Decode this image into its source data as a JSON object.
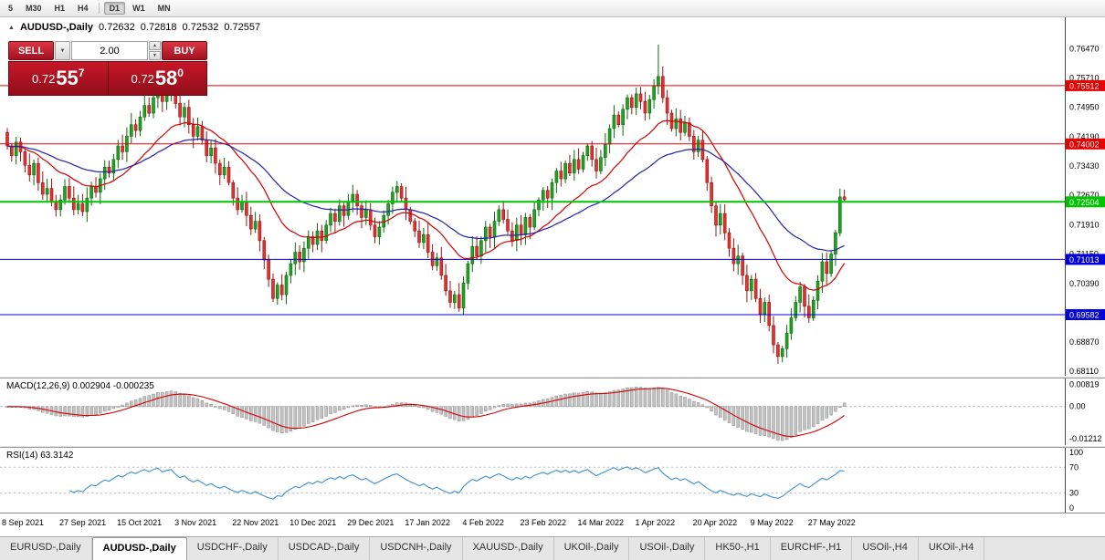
{
  "toolbar": {
    "timeframes": [
      {
        "label": "5",
        "active": false
      },
      {
        "label": "M30",
        "active": false
      },
      {
        "label": "H1",
        "active": false
      },
      {
        "label": "H4",
        "active": false
      },
      {
        "label": "D1",
        "active": true
      },
      {
        "label": "W1",
        "active": false
      },
      {
        "label": "MN",
        "active": false
      }
    ],
    "separator_after_index": 3
  },
  "chart": {
    "title": {
      "marker": "▲",
      "name": "AUDUSD-,Daily",
      "open": "0.72632",
      "high": "0.72818",
      "low": "0.72532",
      "close": "0.72557"
    },
    "trade_panel": {
      "sell_label": "SELL",
      "buy_label": "BUY",
      "volume": "2.00",
      "dropdown_icon": "▼",
      "spin_up_icon": "▲",
      "spin_down_icon": "▼",
      "sell_price": {
        "prefix": "0.72",
        "big": "55",
        "sup": "7"
      },
      "buy_price": {
        "prefix": "0.72",
        "big": "58",
        "sup": "0"
      }
    }
  },
  "chart_data": {
    "type": "candlestick",
    "symbol": "AUDUSD-",
    "timeframe": "Daily",
    "price_axis": {
      "min": 0.68,
      "max": 0.7728,
      "ticks": [
        0.7647,
        0.7571,
        0.7495,
        0.7419,
        0.7343,
        0.7267,
        0.7191,
        0.7115,
        0.7039,
        0.6963,
        0.6887,
        0.6811
      ]
    },
    "hlines": [
      {
        "value": 0.75512,
        "color": "#e60000",
        "width": 1,
        "role": "resistance"
      },
      {
        "value": 0.74002,
        "color": "#e60000",
        "width": 1,
        "role": "resistance"
      },
      {
        "value": 0.72504,
        "color": "#00c400",
        "width": 2,
        "role": "current-level"
      },
      {
        "value": 0.71013,
        "color": "#0000dd",
        "width": 1,
        "role": "support"
      },
      {
        "value": 0.69582,
        "color": "#0000dd",
        "width": 1,
        "role": "support"
      }
    ],
    "x_ticks": [
      {
        "i": 0,
        "label": "8 Sep 2021"
      },
      {
        "i": 13,
        "label": "27 Sep 2021"
      },
      {
        "i": 26,
        "label": "15 Oct 2021"
      },
      {
        "i": 39,
        "label": "3 Nov 2021"
      },
      {
        "i": 52,
        "label": "22 Nov 2021"
      },
      {
        "i": 65,
        "label": "10 Dec 2021"
      },
      {
        "i": 78,
        "label": "29 Dec 2021"
      },
      {
        "i": 91,
        "label": "17 Jan 2022"
      },
      {
        "i": 104,
        "label": "4 Feb 2022"
      },
      {
        "i": 117,
        "label": "23 Feb 2022"
      },
      {
        "i": 130,
        "label": "14 Mar 2022"
      },
      {
        "i": 143,
        "label": "1 Apr 2022"
      },
      {
        "i": 156,
        "label": "20 Apr 2022"
      },
      {
        "i": 169,
        "label": "9 May 2022"
      },
      {
        "i": 182,
        "label": "27 May 2022"
      }
    ],
    "first_open": 0.743,
    "closes": [
      0.7395,
      0.737,
      0.7405,
      0.738,
      0.7345,
      0.732,
      0.735,
      0.73,
      0.727,
      0.7285,
      0.725,
      0.723,
      0.7255,
      0.729,
      0.726,
      0.723,
      0.7245,
      0.7225,
      0.726,
      0.729,
      0.7275,
      0.731,
      0.734,
      0.7325,
      0.736,
      0.7395,
      0.738,
      0.742,
      0.745,
      0.7435,
      0.747,
      0.75,
      0.748,
      0.752,
      0.7545,
      0.751,
      0.7535,
      0.755,
      0.7505,
      0.747,
      0.7495,
      0.745,
      0.742,
      0.7445,
      0.741,
      0.737,
      0.739,
      0.735,
      0.732,
      0.734,
      0.73,
      0.726,
      0.723,
      0.725,
      0.7215,
      0.718,
      0.72,
      0.715,
      0.71,
      0.705,
      0.7,
      0.7035,
      0.701,
      0.706,
      0.709,
      0.712,
      0.7095,
      0.713,
      0.716,
      0.714,
      0.7175,
      0.715,
      0.719,
      0.722,
      0.72,
      0.724,
      0.7215,
      0.725,
      0.727,
      0.724,
      0.721,
      0.723,
      0.719,
      0.716,
      0.7185,
      0.7215,
      0.7245,
      0.7275,
      0.729,
      0.726,
      0.723,
      0.72,
      0.7175,
      0.7145,
      0.7165,
      0.712,
      0.7085,
      0.7105,
      0.706,
      0.702,
      0.699,
      0.701,
      0.6975,
      0.704,
      0.709,
      0.7135,
      0.711,
      0.715,
      0.7185,
      0.716,
      0.72,
      0.723,
      0.7205,
      0.7175,
      0.715,
      0.719,
      0.7165,
      0.721,
      0.7185,
      0.723,
      0.7255,
      0.728,
      0.726,
      0.73,
      0.733,
      0.731,
      0.735,
      0.7325,
      0.736,
      0.7335,
      0.737,
      0.7395,
      0.736,
      0.733,
      0.7365,
      0.74,
      0.744,
      0.7475,
      0.745,
      0.749,
      0.752,
      0.7495,
      0.753,
      0.751,
      0.748,
      0.7515,
      0.755,
      0.7575,
      0.752,
      0.748,
      0.744,
      0.7465,
      0.743,
      0.7455,
      0.742,
      0.738,
      0.741,
      0.736,
      0.73,
      0.724,
      0.719,
      0.722,
      0.717,
      0.713,
      0.709,
      0.711,
      0.706,
      0.702,
      0.705,
      0.7,
      0.696,
      0.699,
      0.693,
      0.688,
      0.685,
      0.687,
      0.691,
      0.695,
      0.699,
      0.703,
      0.698,
      0.695,
      0.6995,
      0.7045,
      0.7095,
      0.7065,
      0.7115,
      0.717,
      0.7263,
      0.72557
    ],
    "ohlc_overrides": {
      "37": {
        "h": 0.7562
      },
      "147": {
        "h": 0.7657
      },
      "174": {
        "l": 0.6831
      },
      "189": {
        "o": 0.72632,
        "h": 0.72818,
        "l": 0.72532,
        "c": 0.72557
      }
    },
    "candle_colors": {
      "up_fill": "#23a123",
      "up_border": "#0c6b0c",
      "down_fill": "#e03232",
      "down_border": "#9c1414"
    },
    "moving_averages": [
      {
        "period": 20,
        "color": "#d40000",
        "name": "ma-fast"
      },
      {
        "period": 45,
        "color": "#2222b0",
        "name": "ma-slow"
      }
    ],
    "macd": {
      "label": "MACD(12,26,9)",
      "value_main": "0.002904",
      "value_signal": "-0.000235",
      "axis_labels": [
        "0.00819",
        "0.00",
        "-0.01212"
      ],
      "axis_values": [
        0.00819,
        0,
        -0.01212
      ],
      "min": -0.0145,
      "max": 0.0105,
      "fast": 12,
      "slow": 26,
      "signal": 9,
      "hist_fill": "#c2c2c2",
      "hist_border": "#8f8f8f",
      "signal_color": "#d40000"
    },
    "rsi": {
      "label": "RSI(14)",
      "value": "63.3142",
      "period": 14,
      "levels": [
        70,
        30
      ],
      "axis_values": [
        100,
        70,
        30,
        0
      ],
      "color": "#3f8fd0",
      "min": 0,
      "max": 100
    }
  },
  "tabs": {
    "items": [
      {
        "label": "EURUSD-,Daily",
        "active": false
      },
      {
        "label": "AUDUSD-,Daily",
        "active": true
      },
      {
        "label": "USDCHF-,Daily",
        "active": false
      },
      {
        "label": "USDCAD-,Daily",
        "active": false
      },
      {
        "label": "USDCNH-,Daily",
        "active": false
      },
      {
        "label": "XAUUSD-,Daily",
        "active": false
      },
      {
        "label": "UKOil-,Daily",
        "active": false
      },
      {
        "label": "USOil-,Daily",
        "active": false
      },
      {
        "label": "HK50-,H1",
        "active": false
      },
      {
        "label": "EURCHF-,H1",
        "active": false
      },
      {
        "label": "USOil-,H4",
        "active": false
      },
      {
        "label": "UKOil-,H4",
        "active": false
      }
    ]
  }
}
